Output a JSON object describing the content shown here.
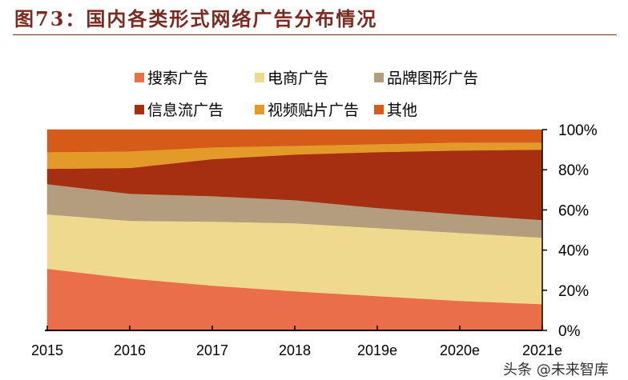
{
  "title": "图73：国内各类形式网络广告分布情况",
  "watermark": "头条 @未来智库",
  "chart_data": {
    "type": "area",
    "stacked": true,
    "normalized": true,
    "title": "图73：国内各类形式网络广告分布情况",
    "xlabel": "",
    "ylabel": "",
    "categories": [
      "2015",
      "2016",
      "2017",
      "2018",
      "2019e",
      "2020e",
      "2021e"
    ],
    "yticks": [
      "0%",
      "20%",
      "40%",
      "60%",
      "80%",
      "100%"
    ],
    "ylim": [
      0,
      100
    ],
    "grid": false,
    "y_axis_side": "right",
    "legend_position": "top",
    "series": [
      {
        "name": "搜索广告",
        "color": "#EB6E4B",
        "values": [
          30.7,
          25.9,
          22.3,
          19.5,
          17.1,
          14.7,
          13.1
        ]
      },
      {
        "name": "电商广告",
        "color": "#EED98E",
        "values": [
          27.1,
          28.7,
          31.9,
          33.9,
          33.9,
          33.9,
          33.1
        ]
      },
      {
        "name": "品牌图形广告",
        "color": "#B39D7E",
        "values": [
          15.1,
          13.5,
          12.7,
          11.5,
          10.0,
          9.2,
          8.8
        ]
      },
      {
        "name": "信息流广告",
        "color": "#A52F10",
        "values": [
          7.6,
          12.8,
          18.4,
          22.7,
          27.8,
          31.8,
          35.0
        ]
      },
      {
        "name": "视频贴片广告",
        "color": "#E39A28",
        "values": [
          8.3,
          8.3,
          5.9,
          4.4,
          4.0,
          4.0,
          3.6
        ]
      },
      {
        "name": "其他",
        "color": "#D65A18",
        "values": [
          11.2,
          10.8,
          8.8,
          8.0,
          7.2,
          6.4,
          6.4
        ]
      }
    ]
  }
}
